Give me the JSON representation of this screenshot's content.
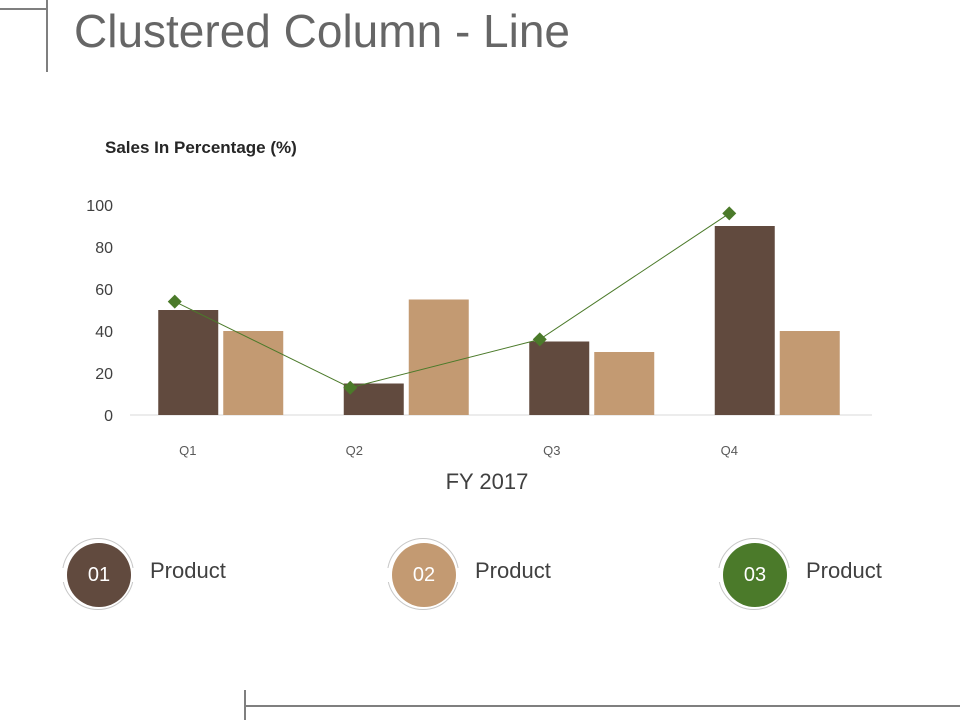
{
  "slide": {
    "title": "Clustered Column - Line"
  },
  "chart_data": {
    "type": "bar",
    "title": "Sales In Percentage (%)",
    "xlabel": "FY 2017",
    "ylabel": "",
    "categories": [
      "Q1",
      "Q2",
      "Q3",
      "Q4"
    ],
    "ylim": [
      0,
      100
    ],
    "yticks": [
      0,
      20,
      40,
      60,
      80,
      100
    ],
    "grid": false,
    "series": [
      {
        "kind": "bar",
        "color": "#614a3e",
        "values": [
          50,
          15,
          35,
          90
        ]
      },
      {
        "kind": "bar",
        "color": "#c39a72",
        "values": [
          40,
          55,
          30,
          40
        ]
      },
      {
        "kind": "line",
        "color": "#4b7a2a",
        "marker": "diamond",
        "values": [
          54,
          13,
          36,
          96
        ]
      }
    ]
  },
  "legend": [
    {
      "number": "01",
      "label": "Product",
      "color": "#614a3e"
    },
    {
      "number": "02",
      "label": "Product",
      "color": "#c39a72"
    },
    {
      "number": "03",
      "label": "Product",
      "color": "#4b7a2a"
    }
  ]
}
